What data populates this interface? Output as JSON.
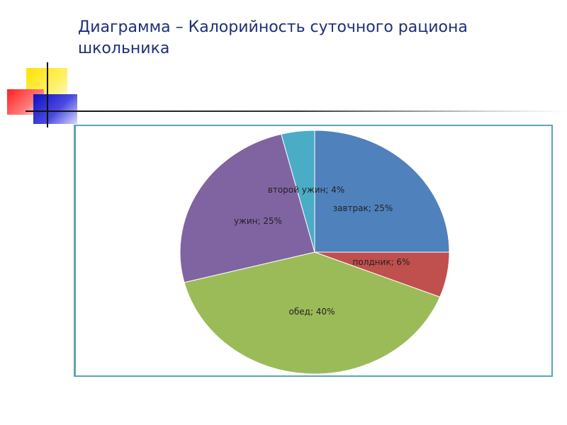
{
  "slide": {
    "title": "Диаграмма – Калорийность суточного рациона школьника"
  },
  "chart_data": {
    "type": "pie",
    "title": "",
    "start_angle_deg": 0,
    "direction": "clockwise",
    "slices": [
      {
        "label": "завтрак",
        "value": 25,
        "color": "#4f81bd",
        "data_label": "завтрак; 25%"
      },
      {
        "label": "полдник",
        "value": 6,
        "color": "#c0504d",
        "data_label": "полдник; 6%"
      },
      {
        "label": "обед",
        "value": 40,
        "color": "#9bbb59",
        "data_label": "обед; 40%"
      },
      {
        "label": "ужин",
        "value": 25,
        "color": "#8064a2",
        "data_label": "ужин; 25%"
      },
      {
        "label": "второй ужин",
        "value": 4,
        "color": "#4bacc6",
        "data_label": "второй ужин; 4%"
      }
    ],
    "legend": "none"
  }
}
